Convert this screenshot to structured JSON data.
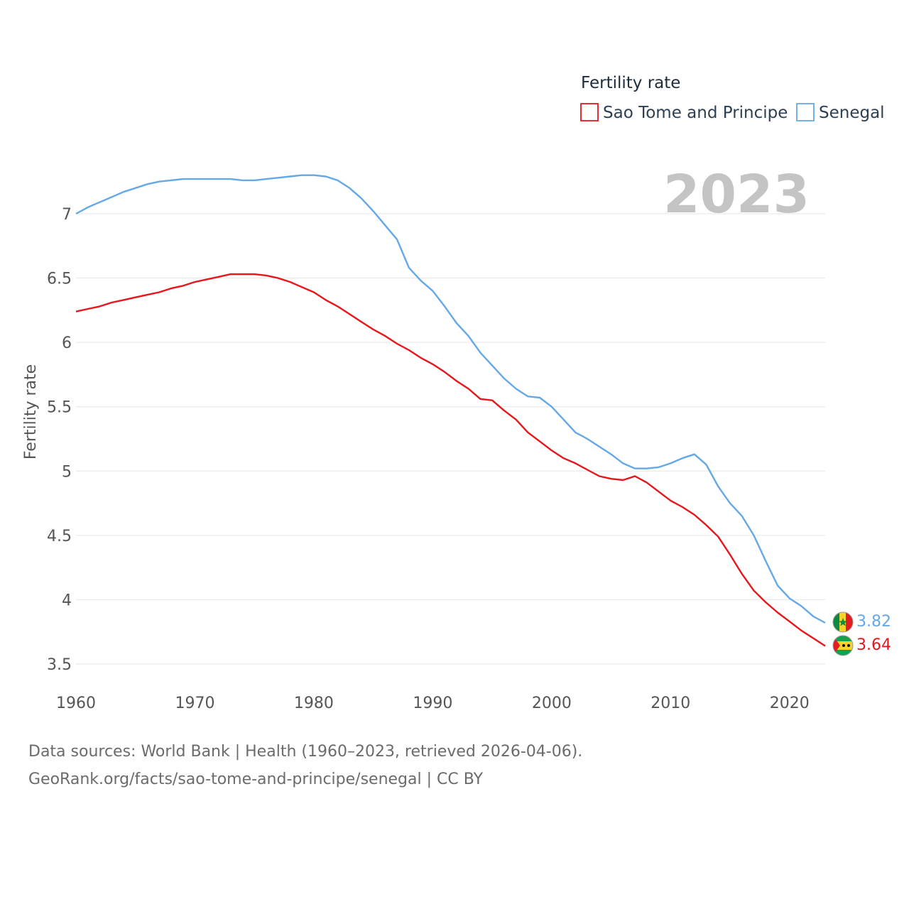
{
  "chart_data": {
    "type": "line",
    "legend_title": "Fertility rate",
    "ylabel": "Fertility rate",
    "year_label": "2023",
    "ylim": [
      3.5,
      7.3
    ],
    "yticks": [
      3.5,
      4,
      4.5,
      5,
      5.5,
      6,
      6.5,
      7
    ],
    "xlim": [
      1960,
      2023
    ],
    "xticks": [
      1960,
      1970,
      1980,
      1990,
      2000,
      2010,
      2020
    ],
    "x": [
      1960,
      1961,
      1962,
      1963,
      1964,
      1965,
      1966,
      1967,
      1968,
      1969,
      1970,
      1971,
      1972,
      1973,
      1974,
      1975,
      1976,
      1977,
      1978,
      1979,
      1980,
      1981,
      1982,
      1983,
      1984,
      1985,
      1986,
      1987,
      1988,
      1989,
      1990,
      1991,
      1992,
      1993,
      1994,
      1995,
      1996,
      1997,
      1998,
      1999,
      2000,
      2001,
      2002,
      2003,
      2004,
      2005,
      2006,
      2007,
      2008,
      2009,
      2010,
      2011,
      2012,
      2013,
      2014,
      2015,
      2016,
      2017,
      2018,
      2019,
      2020,
      2021,
      2022,
      2023
    ],
    "series": [
      {
        "name": "Sao Tome and Principe",
        "color": "#e8161b",
        "end_label": "3.64",
        "values": [
          6.24,
          6.26,
          6.28,
          6.31,
          6.33,
          6.35,
          6.37,
          6.39,
          6.42,
          6.44,
          6.47,
          6.49,
          6.51,
          6.53,
          6.53,
          6.53,
          6.52,
          6.5,
          6.47,
          6.43,
          6.39,
          6.33,
          6.28,
          6.22,
          6.16,
          6.1,
          6.05,
          5.99,
          5.94,
          5.88,
          5.83,
          5.77,
          5.7,
          5.64,
          5.56,
          5.55,
          5.47,
          5.4,
          5.3,
          5.23,
          5.16,
          5.1,
          5.06,
          5.01,
          4.96,
          4.94,
          4.93,
          4.96,
          4.91,
          4.84,
          4.77,
          4.72,
          4.66,
          4.58,
          4.49,
          4.35,
          4.2,
          4.07,
          3.98,
          3.9,
          3.83,
          3.76,
          3.7,
          3.64
        ]
      },
      {
        "name": "Senegal",
        "color": "#64a8e8",
        "end_label": "3.82",
        "values": [
          7.0,
          7.05,
          7.09,
          7.13,
          7.17,
          7.2,
          7.23,
          7.25,
          7.26,
          7.27,
          7.27,
          7.27,
          7.27,
          7.27,
          7.26,
          7.26,
          7.27,
          7.28,
          7.29,
          7.3,
          7.3,
          7.29,
          7.26,
          7.2,
          7.12,
          7.02,
          6.91,
          6.8,
          6.58,
          6.48,
          6.4,
          6.28,
          6.15,
          6.05,
          5.92,
          5.82,
          5.72,
          5.64,
          5.58,
          5.57,
          5.5,
          5.4,
          5.3,
          5.25,
          5.19,
          5.13,
          5.06,
          5.02,
          5.02,
          5.03,
          5.06,
          5.1,
          5.13,
          5.05,
          4.88,
          4.75,
          4.65,
          4.5,
          4.3,
          4.11,
          4.01,
          3.95,
          3.87,
          3.82
        ]
      }
    ]
  },
  "footer": {
    "line1": "Data sources: World Bank | Health (1960–2023, retrieved 2026-04-06).",
    "line2": "GeoRank.org/facts/sao-tome-and-principe/senegal | CC BY"
  }
}
